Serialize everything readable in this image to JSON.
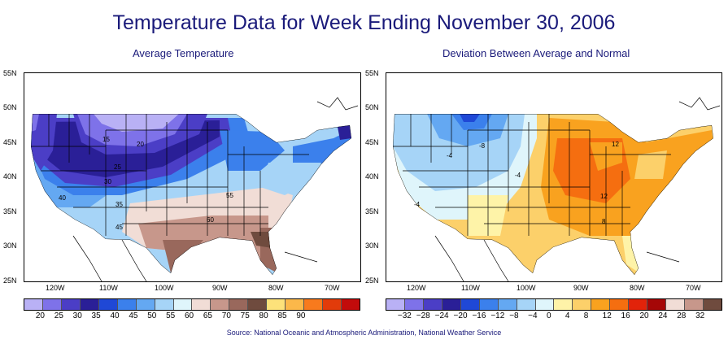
{
  "title": "Temperature Data for Week Ending November 30, 2006",
  "left_panel": {
    "subtitle": "Average Temperature",
    "contour_labels": [
      "15",
      "20",
      "25",
      "30",
      "35",
      "40",
      "45",
      "55",
      "60"
    ],
    "legend": {
      "labels": [
        "20",
        "25",
        "30",
        "35",
        "40",
        "45",
        "50",
        "55",
        "60",
        "65",
        "70",
        "75",
        "80",
        "85",
        "90"
      ],
      "colors": [
        "#b9b1f5",
        "#7e72e9",
        "#4b3ec6",
        "#2a1f97",
        "#1f48d6",
        "#3b80ec",
        "#64a8f2",
        "#a6d4f7",
        "#dff5fb",
        "#f1ddd6",
        "#c7978b",
        "#99685c",
        "#6f4b3e",
        "#fde27a",
        "#fbb84a",
        "#f87a1d",
        "#e23b0a",
        "#c20b0b"
      ]
    }
  },
  "right_panel": {
    "subtitle": "Deviation Between Average and Normal",
    "contour_labels": [
      "-8",
      "-4",
      "-4",
      "-4",
      "12",
      "12",
      "8"
    ],
    "legend": {
      "labels": [
        "−32",
        "−28",
        "−24",
        "−20",
        "−16",
        "−12",
        "−8",
        "−4",
        "0",
        "4",
        "8",
        "12",
        "16",
        "20",
        "24",
        "28",
        "32"
      ],
      "colors": [
        "#b9b1f5",
        "#7e72e9",
        "#4b3ec6",
        "#2a1f97",
        "#1f48d6",
        "#3b80ec",
        "#64a8f2",
        "#a6d4f7",
        "#dff5fb",
        "#fef3a8",
        "#fcd06a",
        "#f9a21f",
        "#f56e10",
        "#e2230a",
        "#a50707",
        "#f1ddd6",
        "#c7978b",
        "#6f4b3e"
      ]
    }
  },
  "latitude_labels": [
    "55N",
    "50N",
    "45N",
    "40N",
    "35N",
    "30N",
    "25N"
  ],
  "longitude_labels": [
    "120W",
    "110W",
    "100W",
    "90W",
    "80W",
    "70W"
  ],
  "source": "Source:  National Oceanic and Atmospheric Administration, National Weather Service"
}
